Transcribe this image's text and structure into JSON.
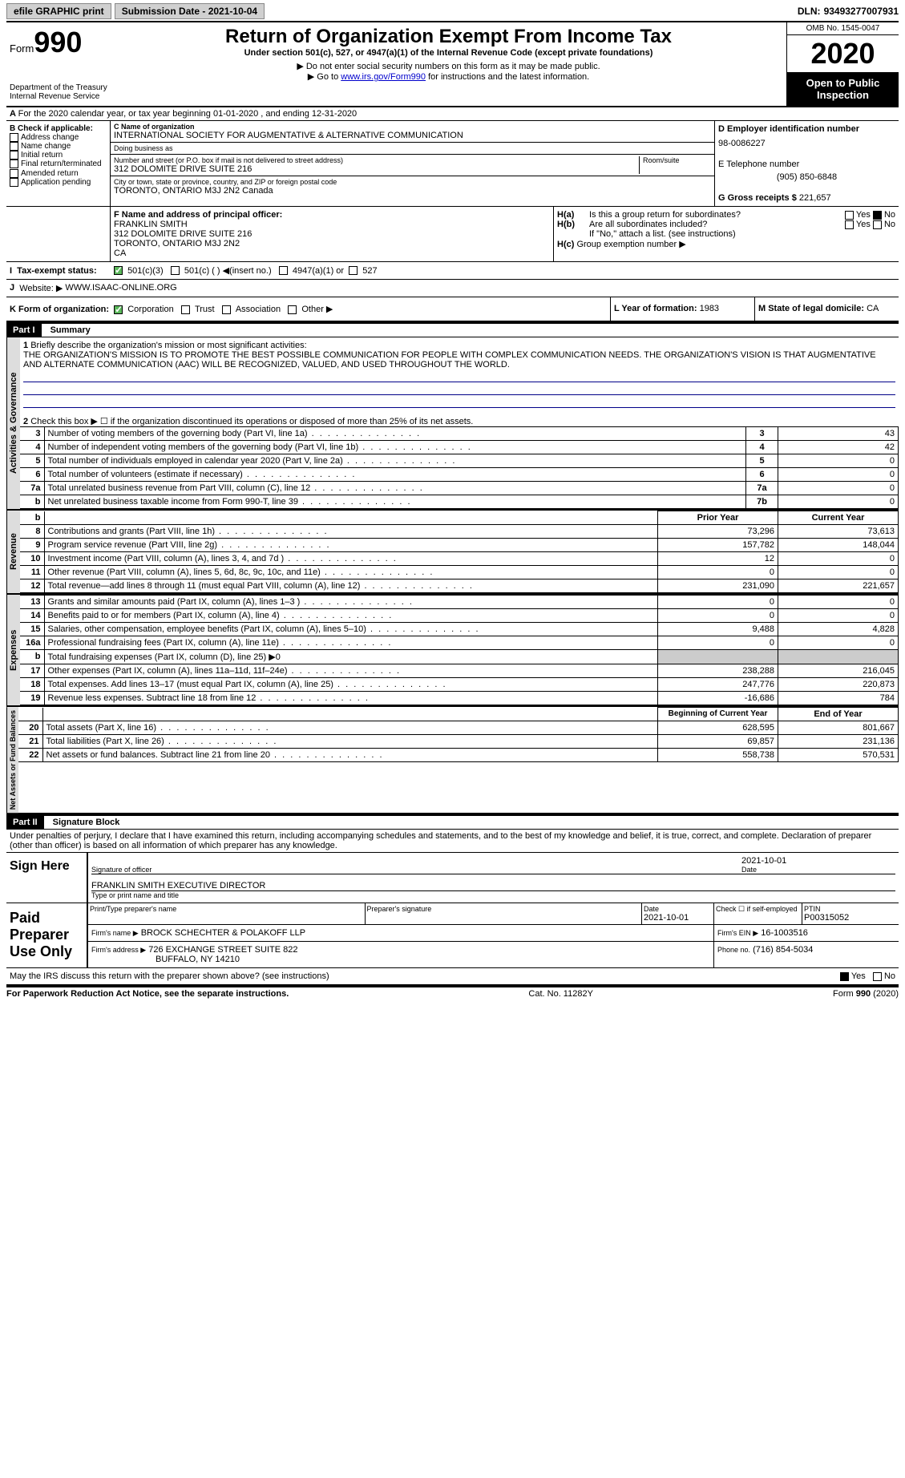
{
  "topbar": {
    "efile": "efile GRAPHIC print",
    "submission": "Submission Date - 2021-10-04",
    "dln_label": "DLN:",
    "dln": "93493277007931"
  },
  "header": {
    "form": "Form",
    "num": "990",
    "dept": "Department of the Treasury Internal Revenue Service",
    "title": "Return of Organization Exempt From Income Tax",
    "subtitle": "Under section 501(c), 527, or 4947(a)(1) of the Internal Revenue Code (except private foundations)",
    "note1": "▶ Do not enter social security numbers on this form as it may be made public.",
    "note2_pre": "▶ Go to ",
    "note2_link": "www.irs.gov/Form990",
    "note2_post": " for instructions and the latest information.",
    "omb": "OMB No. 1545-0047",
    "year": "2020",
    "inspect": "Open to Public Inspection"
  },
  "line_a": "For the 2020 calendar year, or tax year beginning 01-01-2020   , and ending 12-31-2020",
  "section_b": {
    "label": "B Check if applicable:",
    "items": [
      "Address change",
      "Name change",
      "Initial return",
      "Final return/terminated",
      "Amended return",
      "Application pending"
    ]
  },
  "section_c": {
    "name_label": "C Name of organization",
    "name": "INTERNATIONAL SOCIETY FOR AUGMENTATIVE & ALTERNATIVE COMMUNICATION",
    "dba_label": "Doing business as",
    "dba": "",
    "street_label": "Number and street (or P.O. box if mail is not delivered to street address)",
    "street": "312 DOLOMITE DRIVE SUITE 216",
    "room_label": "Room/suite",
    "city_label": "City or town, state or province, country, and ZIP or foreign postal code",
    "city": "TORONTO, ONTARIO  M3J 2N2 Canada"
  },
  "section_d": {
    "ein_label": "D Employer identification number",
    "ein": "98-0086227",
    "phone_label": "E Telephone number",
    "phone": "(905) 850-6848",
    "gross_label": "G Gross receipts $",
    "gross": "221,657"
  },
  "section_f": {
    "label": "F Name and address of principal officer:",
    "name": "FRANKLIN SMITH",
    "addr1": "312 DOLOMITE DRIVE SUITE 216",
    "addr2": "TORONTO, ONTARIO  M3J 2N2",
    "addr3": "CA"
  },
  "section_h": {
    "ha": "Is this a group return for subordinates?",
    "hb": "Are all subordinates included?",
    "hb_note": "If \"No,\" attach a list. (see instructions)",
    "hc": "Group exemption number ▶"
  },
  "section_i": {
    "label": "Tax-exempt status:",
    "opts": [
      "501(c)(3)",
      "501(c) (  ) ◀(insert no.)",
      "4947(a)(1) or",
      "527"
    ]
  },
  "section_j": {
    "label": "Website: ▶",
    "val": "WWW.ISAAC-ONLINE.ORG"
  },
  "section_k": {
    "label": "K Form of organization:",
    "opts": [
      "Corporation",
      "Trust",
      "Association",
      "Other ▶"
    ]
  },
  "section_l": {
    "label": "L Year of formation:",
    "val": "1983"
  },
  "section_m": {
    "label": "M State of legal domicile:",
    "val": "CA"
  },
  "part1": {
    "title": "Part I",
    "name": "Summary",
    "l1": "Briefly describe the organization's mission or most significant activities:",
    "mission": "THE ORGANIZATION'S MISSION IS TO PROMOTE THE BEST POSSIBLE COMMUNICATION FOR PEOPLE WITH COMPLEX COMMUNICATION NEEDS. THE ORGANIZATION'S VISION IS THAT AUGMENTATIVE AND ALTERNATE COMMUNICATION (AAC) WILL BE RECOGNIZED, VALUED, AND USED THROUGHOUT THE WORLD.",
    "l2": "Check this box ▶ ☐ if the organization discontinued its operations or disposed of more than 25% of its net assets.",
    "governance": [
      {
        "n": "3",
        "d": "Number of voting members of the governing body (Part VI, line 1a)",
        "b": "3",
        "v": "43"
      },
      {
        "n": "4",
        "d": "Number of independent voting members of the governing body (Part VI, line 1b)",
        "b": "4",
        "v": "42"
      },
      {
        "n": "5",
        "d": "Total number of individuals employed in calendar year 2020 (Part V, line 2a)",
        "b": "5",
        "v": "0"
      },
      {
        "n": "6",
        "d": "Total number of volunteers (estimate if necessary)",
        "b": "6",
        "v": "0"
      },
      {
        "n": "7a",
        "d": "Total unrelated business revenue from Part VIII, column (C), line 12",
        "b": "7a",
        "v": "0"
      },
      {
        "n": "b",
        "d": "Net unrelated business taxable income from Form 990-T, line 39",
        "b": "7b",
        "v": "0"
      }
    ],
    "prior_label": "Prior Year",
    "current_label": "Current Year",
    "revenue": [
      {
        "n": "8",
        "d": "Contributions and grants (Part VIII, line 1h)",
        "p": "73,296",
        "c": "73,613"
      },
      {
        "n": "9",
        "d": "Program service revenue (Part VIII, line 2g)",
        "p": "157,782",
        "c": "148,044"
      },
      {
        "n": "10",
        "d": "Investment income (Part VIII, column (A), lines 3, 4, and 7d )",
        "p": "12",
        "c": "0"
      },
      {
        "n": "11",
        "d": "Other revenue (Part VIII, column (A), lines 5, 6d, 8c, 9c, 10c, and 11e)",
        "p": "0",
        "c": "0"
      },
      {
        "n": "12",
        "d": "Total revenue—add lines 8 through 11 (must equal Part VIII, column (A), line 12)",
        "p": "231,090",
        "c": "221,657"
      }
    ],
    "expenses": [
      {
        "n": "13",
        "d": "Grants and similar amounts paid (Part IX, column (A), lines 1–3 )",
        "p": "0",
        "c": "0"
      },
      {
        "n": "14",
        "d": "Benefits paid to or for members (Part IX, column (A), line 4)",
        "p": "0",
        "c": "0"
      },
      {
        "n": "15",
        "d": "Salaries, other compensation, employee benefits (Part IX, column (A), lines 5–10)",
        "p": "9,488",
        "c": "4,828"
      },
      {
        "n": "16a",
        "d": "Professional fundraising fees (Part IX, column (A), line 11e)",
        "p": "0",
        "c": "0"
      },
      {
        "n": "b",
        "d": "Total fundraising expenses (Part IX, column (D), line 25) ▶0",
        "p": "",
        "c": ""
      },
      {
        "n": "17",
        "d": "Other expenses (Part IX, column (A), lines 11a–11d, 11f–24e)",
        "p": "238,288",
        "c": "216,045"
      },
      {
        "n": "18",
        "d": "Total expenses. Add lines 13–17 (must equal Part IX, column (A), line 25)",
        "p": "247,776",
        "c": "220,873"
      },
      {
        "n": "19",
        "d": "Revenue less expenses. Subtract line 18 from line 12",
        "p": "-16,686",
        "c": "784"
      }
    ],
    "begin_label": "Beginning of Current Year",
    "end_label": "End of Year",
    "netassets": [
      {
        "n": "20",
        "d": "Total assets (Part X, line 16)",
        "p": "628,595",
        "c": "801,667"
      },
      {
        "n": "21",
        "d": "Total liabilities (Part X, line 26)",
        "p": "69,857",
        "c": "231,136"
      },
      {
        "n": "22",
        "d": "Net assets or fund balances. Subtract line 21 from line 20",
        "p": "558,738",
        "c": "570,531"
      }
    ],
    "vert": {
      "gov": "Activities & Governance",
      "rev": "Revenue",
      "exp": "Expenses",
      "net": "Net Assets or Fund Balances"
    }
  },
  "part2": {
    "title": "Part II",
    "name": "Signature Block",
    "declaration": "Under penalties of perjury, I declare that I have examined this return, including accompanying schedules and statements, and to the best of my knowledge and belief, it is true, correct, and complete. Declaration of preparer (other than officer) is based on all information of which preparer has any knowledge.",
    "sign_here": "Sign Here",
    "sig_date": "2021-10-01",
    "sig_of_officer": "Signature of officer",
    "date_label": "Date",
    "officer_name": "FRANKLIN SMITH  EXECUTIVE DIRECTOR",
    "type_name": "Type or print name and title",
    "paid": "Paid Preparer Use Only",
    "prep_name_label": "Print/Type preparer's name",
    "prep_sig_label": "Preparer's signature",
    "prep_date": "2021-10-01",
    "check_if": "Check ☐ if self-employed",
    "ptin_label": "PTIN",
    "ptin": "P00315052",
    "firm_name_label": "Firm's name    ▶",
    "firm_name": "BROCK SCHECHTER & POLAKOFF LLP",
    "firm_ein_label": "Firm's EIN ▶",
    "firm_ein": "16-1003516",
    "firm_addr_label": "Firm's address ▶",
    "firm_addr1": "726 EXCHANGE STREET SUITE 822",
    "firm_addr2": "BUFFALO, NY  14210",
    "firm_phone_label": "Phone no.",
    "firm_phone": "(716) 854-5034",
    "discuss": "May the IRS discuss this return with the preparer shown above? (see instructions)"
  },
  "footer": {
    "left": "For Paperwork Reduction Act Notice, see the separate instructions.",
    "center": "Cat. No. 11282Y",
    "right": "Form 990 (2020)"
  },
  "yes": "Yes",
  "no": "No"
}
